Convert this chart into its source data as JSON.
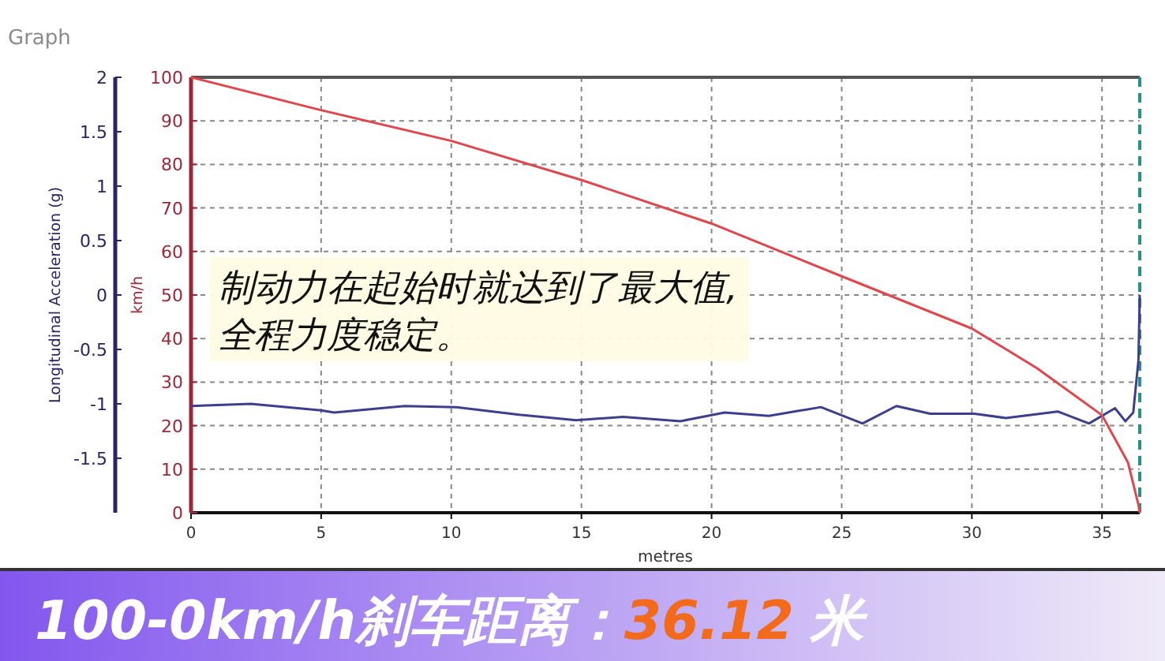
{
  "chart_data": {
    "type": "line",
    "title": "Graph",
    "xlabel": "metres",
    "ylabel": "Longitudinal Acceleration (g)",
    "y2label": "km/h",
    "xlim": [
      0,
      36.45
    ],
    "xticks": [
      0,
      5,
      10,
      15,
      20,
      25,
      30,
      35
    ],
    "ylim": [
      -2,
      2
    ],
    "yticks": [
      -1.5,
      -1,
      -0.5,
      0,
      0.5,
      1,
      1.5,
      2
    ],
    "y2lim": [
      0,
      100
    ],
    "y2ticks": [
      0,
      10,
      20,
      30,
      40,
      50,
      60,
      70,
      80,
      90,
      100
    ],
    "grid": true,
    "marker": "none",
    "line_style": "solid",
    "ref_lines": [
      {
        "axis": "x",
        "value": 36.45,
        "color": "#2a8f8a",
        "line_style": "dashed"
      }
    ],
    "annotations": [
      "制动力在起始时就达到了最大值,\n全程力度稳定。",
      "100-0km/h刹车距离：",
      "36.12",
      "米"
    ],
    "series": [
      {
        "color": "#3b3f8c",
        "axis": "y",
        "x": [
          0,
          2.3,
          5,
          5.5,
          8.2,
          10.2,
          12.6,
          14.8,
          16.6,
          18.8,
          20.5,
          22.2,
          24.2,
          25.8,
          27.1,
          28.4,
          30.1,
          31.3,
          33.3,
          34.5,
          35.5,
          35.9,
          36.2,
          36.4,
          36.45
        ],
        "values": [
          -1.02,
          -1.0,
          -1.06,
          -1.08,
          -1.02,
          -1.03,
          -1.1,
          -1.15,
          -1.12,
          -1.16,
          -1.08,
          -1.11,
          -1.03,
          -1.18,
          -1.02,
          -1.09,
          -1.09,
          -1.13,
          -1.07,
          -1.18,
          -1.04,
          -1.16,
          -1.08,
          -0.6,
          0
        ]
      },
      {
        "color": "#e0474c",
        "axis": "y2",
        "x": [
          0,
          4.9,
          10,
          15,
          20,
          25,
          30,
          32.5,
          35,
          36,
          36.4,
          36.45
        ],
        "values": [
          100,
          92.6,
          85.4,
          76.4,
          66.4,
          54.3,
          42.3,
          33.2,
          22.4,
          11.5,
          1.8,
          0
        ]
      }
    ]
  }
}
